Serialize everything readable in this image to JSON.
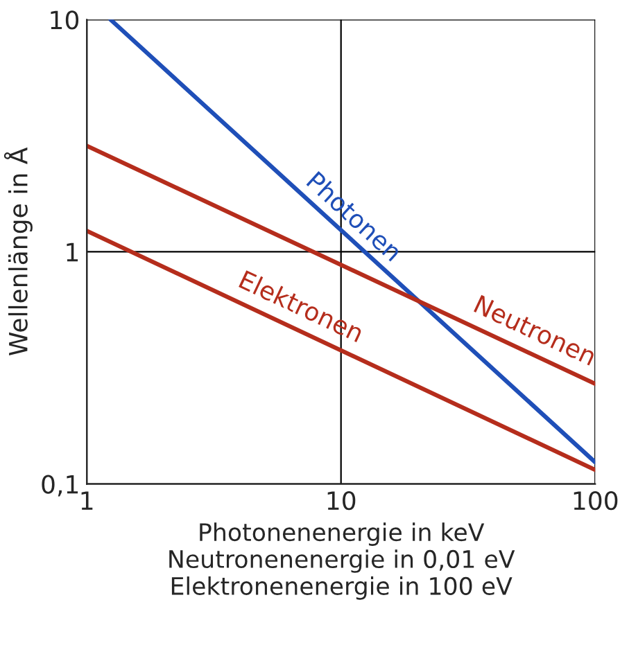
{
  "chart_data": {
    "type": "line",
    "log": "xy",
    "xlabel": "Photonenenergie in keV\nNeutronenenergie in 0,01 eV\nElektronenenergie in 100 eV",
    "ylabel": "Wellenlänge in Å",
    "xlim": [
      1,
      100
    ],
    "ylim": [
      0.1,
      10
    ],
    "xticks": [
      1,
      10,
      100
    ],
    "yticks": [
      {
        "value": 0.1,
        "label": "0,1"
      },
      1,
      10
    ],
    "grid": true,
    "marker": "none",
    "line_style": "solid",
    "series": [
      {
        "name": "Photonen",
        "color": "#1f4fb8",
        "x": [
          1.24,
          100
        ],
        "values": [
          10,
          0.124
        ]
      },
      {
        "name": "Neutronen",
        "color": "#b52d1c",
        "x": [
          1,
          100
        ],
        "values": [
          2.86,
          0.27
        ]
      },
      {
        "name": "Elektronen",
        "color": "#b52d1c",
        "x": [
          1,
          100
        ],
        "values": [
          1.23,
          0.115
        ]
      }
    ]
  }
}
